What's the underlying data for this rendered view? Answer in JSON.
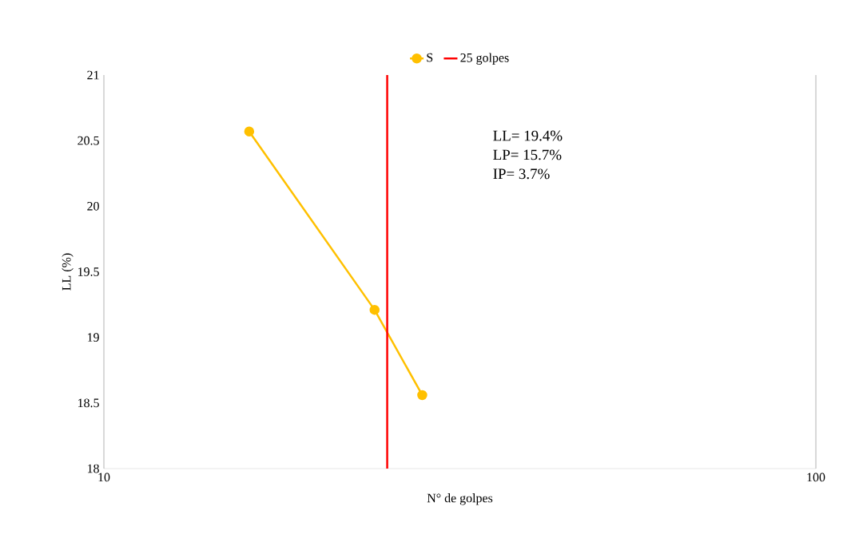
{
  "chart_data": {
    "type": "line",
    "x": [
      16,
      24,
      28
    ],
    "series": [
      {
        "name": "S",
        "color": "#ffc000",
        "values": [
          20.57,
          19.21,
          18.56
        ]
      }
    ],
    "ref_lines": [
      {
        "axis": "x",
        "value": 25,
        "label": "25 golpes",
        "color": "#ff0000"
      }
    ],
    "xlabel": "N° de golpes",
    "ylabel": "LL (%)",
    "xlim": [
      10,
      100
    ],
    "xticks": [
      10,
      100
    ],
    "ylim": [
      18,
      21
    ],
    "yticks": [
      18,
      18.5,
      19,
      19.5,
      20,
      20.5,
      21
    ],
    "log": "x",
    "legend": "top",
    "marker": "circle",
    "annotations": [
      "LL= 19.4%",
      "LP= 15.7%",
      "IP= 3.7%"
    ]
  }
}
